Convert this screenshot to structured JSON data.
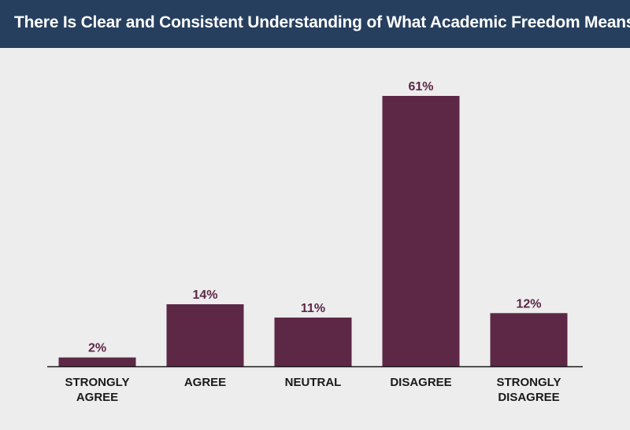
{
  "header": {
    "title": "There Is Clear and Consistent Understanding of What Academic Freedom Means"
  },
  "colors": {
    "bar": "#5c2846",
    "bar_label": "#5c2846",
    "axis_label": "#1a1a1a",
    "axis_line": "#1a1a1a",
    "title_bg": "#263f5f",
    "plot_bg": "#ededed"
  },
  "chart_data": {
    "type": "bar",
    "title": "There Is Clear and Consistent Understanding of What Academic Freedom Means",
    "categories": [
      [
        "STRONGLY",
        "AGREE"
      ],
      [
        "AGREE"
      ],
      [
        "NEUTRAL"
      ],
      [
        "DISAGREE"
      ],
      [
        "STRONGLY",
        "DISAGREE"
      ]
    ],
    "values": [
      2,
      14,
      11,
      61,
      12
    ],
    "data_labels": [
      "2%",
      "14%",
      "11%",
      "61%",
      "12%"
    ],
    "unit": "%",
    "ylim": [
      0,
      61
    ],
    "grid": false,
    "legend": "none"
  }
}
